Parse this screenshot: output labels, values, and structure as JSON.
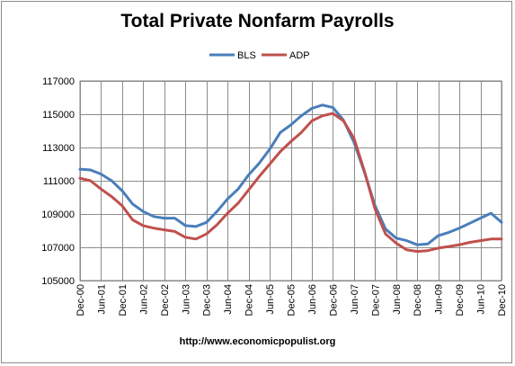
{
  "chart_data": {
    "type": "line",
    "title": "Total Private Nonfarm Payrolls",
    "footer": "http://www.economicpopulist.org",
    "xlabel": "",
    "ylabel": "",
    "ylim": [
      105000,
      117000
    ],
    "yticks": [
      105000,
      107000,
      109000,
      111000,
      113000,
      115000,
      117000
    ],
    "yticks_display": [
      "105000",
      "107000",
      "109000",
      "111000",
      "113000",
      "115000",
      "117000"
    ],
    "x_tick_labels": [
      "Dec-00",
      "Jun-01",
      "Dec-01",
      "Jun-02",
      "Dec-02",
      "Jun-03",
      "Dec-03",
      "Jun-04",
      "Dec-04",
      "Jun-05",
      "Dec-05",
      "Jun-06",
      "Dec-06",
      "Jun-07",
      "Dec-07",
      "Jun-08",
      "Dec-08",
      "Jun-09",
      "Dec-09",
      "Jun-10",
      "Dec-10"
    ],
    "grid": true,
    "legend_position": "top",
    "series": [
      {
        "name": "BLS",
        "color": "#4a7ebb",
        "values": [
          [
            0,
            111700
          ],
          [
            1,
            111650
          ],
          [
            2,
            111400
          ],
          [
            3,
            111000
          ],
          [
            4,
            110400
          ],
          [
            5,
            109600
          ],
          [
            6,
            109150
          ],
          [
            7,
            108850
          ],
          [
            8,
            108750
          ],
          [
            9,
            108750
          ],
          [
            10,
            108300
          ],
          [
            11,
            108250
          ],
          [
            12,
            108500
          ],
          [
            13,
            109150
          ],
          [
            14,
            109900
          ],
          [
            15,
            110500
          ],
          [
            16,
            111350
          ],
          [
            17,
            112050
          ],
          [
            18,
            112900
          ],
          [
            19,
            113900
          ],
          [
            20,
            114350
          ],
          [
            21,
            114900
          ],
          [
            22,
            115350
          ],
          [
            23,
            115550
          ],
          [
            24,
            115400
          ],
          [
            25,
            114650
          ],
          [
            26,
            113300
          ],
          [
            27,
            111500
          ],
          [
            28,
            109500
          ],
          [
            29,
            108100
          ],
          [
            30,
            107550
          ],
          [
            31,
            107400
          ],
          [
            32,
            107150
          ],
          [
            33,
            107200
          ],
          [
            34,
            107700
          ],
          [
            35,
            107900
          ],
          [
            36,
            108150
          ],
          [
            37,
            108450
          ],
          [
            38,
            108750
          ],
          [
            39,
            109050
          ],
          [
            40,
            108500
          ]
        ]
      },
      {
        "name": "ADP",
        "color": "#c0504d",
        "values": [
          [
            0,
            111150
          ],
          [
            1,
            111000
          ],
          [
            2,
            110500
          ],
          [
            3,
            110050
          ],
          [
            4,
            109500
          ],
          [
            5,
            108650
          ],
          [
            6,
            108300
          ],
          [
            7,
            108150
          ],
          [
            8,
            108050
          ],
          [
            9,
            107950
          ],
          [
            10,
            107600
          ],
          [
            11,
            107500
          ],
          [
            12,
            107800
          ],
          [
            13,
            108350
          ],
          [
            14,
            109050
          ],
          [
            15,
            109650
          ],
          [
            16,
            110450
          ],
          [
            17,
            111250
          ],
          [
            18,
            112000
          ],
          [
            19,
            112750
          ],
          [
            20,
            113350
          ],
          [
            21,
            113900
          ],
          [
            22,
            114600
          ],
          [
            23,
            114900
          ],
          [
            24,
            115050
          ],
          [
            25,
            114600
          ],
          [
            26,
            113550
          ],
          [
            27,
            111550
          ],
          [
            28,
            109300
          ],
          [
            29,
            107800
          ],
          [
            30,
            107250
          ],
          [
            31,
            106850
          ],
          [
            32,
            106750
          ],
          [
            33,
            106800
          ],
          [
            34,
            106950
          ],
          [
            35,
            107050
          ],
          [
            36,
            107150
          ],
          [
            37,
            107300
          ],
          [
            38,
            107400
          ],
          [
            39,
            107500
          ],
          [
            40,
            107500
          ]
        ]
      }
    ]
  }
}
